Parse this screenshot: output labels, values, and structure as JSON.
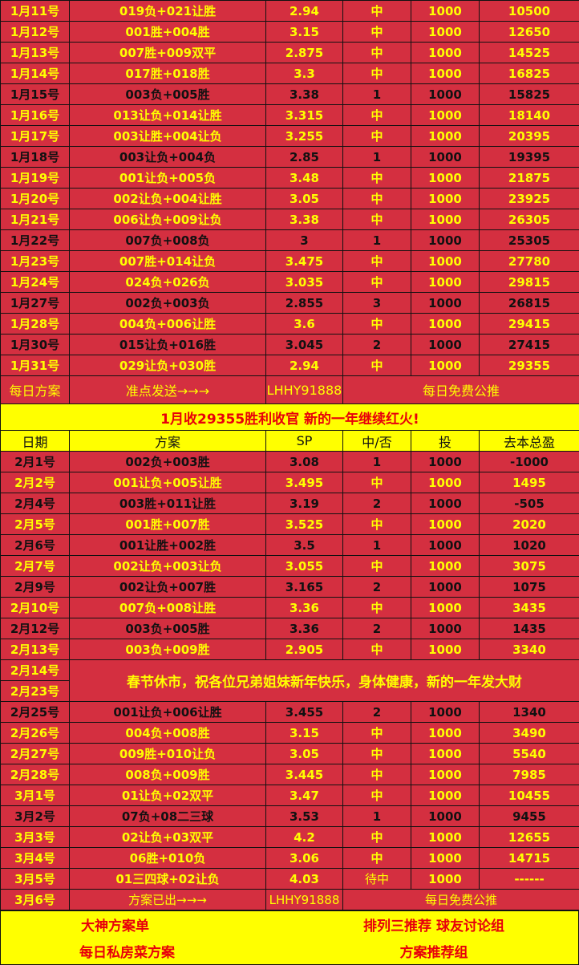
{
  "colors": {
    "background": "#d42f40",
    "win_text": "#ffff00",
    "loss_text": "#111111",
    "banner_bg": "#ffff00",
    "banner_text": "#e8000b"
  },
  "jan_rows": [
    [
      "1月11号",
      "019负+021让胜",
      "2.94",
      "中",
      "1000",
      "10500"
    ],
    [
      "1月12号",
      "001胜+004胜",
      "3.15",
      "中",
      "1000",
      "12650"
    ],
    [
      "1月13号",
      "007胜+009双平",
      "2.875",
      "中",
      "1000",
      "14525"
    ],
    [
      "1月14号",
      "017胜+018胜",
      "3.3",
      "中",
      "1000",
      "16825"
    ],
    [
      "1月15号",
      "003负+005胜",
      "3.38",
      "1",
      "1000",
      "15825"
    ],
    [
      "1月16号",
      "013让负+014让胜",
      "3.315",
      "中",
      "1000",
      "18140"
    ],
    [
      "1月17号",
      "003让胜+004让负",
      "3.255",
      "中",
      "1000",
      "20395"
    ],
    [
      "1月18号",
      "003让负+004负",
      "2.85",
      "1",
      "1000",
      "19395"
    ],
    [
      "1月19号",
      "001让负+005负",
      "3.48",
      "中",
      "1000",
      "21875"
    ],
    [
      "1月20号",
      "002让负+004让胜",
      "3.05",
      "中",
      "1000",
      "23925"
    ],
    [
      "1月21号",
      "006让负+009让负",
      "3.38",
      "中",
      "1000",
      "26305"
    ],
    [
      "1月22号",
      "007负+008负",
      "3",
      "1",
      "1000",
      "25305"
    ],
    [
      "1月23号",
      "007胜+014让负",
      "3.475",
      "中",
      "1000",
      "27780"
    ],
    [
      "1月24号",
      "024负+026负",
      "3.035",
      "中",
      "1000",
      "29815"
    ],
    [
      "1月27号",
      "002负+003负",
      "2.855",
      "3",
      "1000",
      "26815"
    ],
    [
      "1月28号",
      "004负+006让胜",
      "3.6",
      "中",
      "1000",
      "29415"
    ],
    [
      "1月30号",
      "015让负+016胜",
      "3.045",
      "2",
      "1000",
      "27415"
    ],
    [
      "1月31号",
      "029让负+030胜",
      "2.94",
      "中",
      "1000",
      "29355"
    ]
  ],
  "jan_info": {
    "c1": "每日方案",
    "c2": "准点发送→→→",
    "c3": "LHHY91888",
    "c4": "每日免费公推"
  },
  "banner": "1月收29355胜利收官 新的一年继续红火!",
  "header": [
    "日期",
    "方案",
    "SP",
    "中/否",
    "投",
    "去本总盈"
  ],
  "feb_rows_a": [
    [
      "2月1号",
      "002负+003胜",
      "3.08",
      "1",
      "1000",
      "-1000"
    ],
    [
      "2月2号",
      "001让负+005让胜",
      "3.495",
      "中",
      "1000",
      "1495"
    ],
    [
      "2月4号",
      "003胜+011让胜",
      "3.19",
      "2",
      "1000",
      "-505"
    ],
    [
      "2月5号",
      "001胜+007胜",
      "3.525",
      "中",
      "1000",
      "2020"
    ],
    [
      "2月6号",
      "001让胜+002胜",
      "3.5",
      "1",
      "1000",
      "1020"
    ],
    [
      "2月7号",
      "002让负+003让负",
      "3.055",
      "中",
      "1000",
      "3075"
    ],
    [
      "2月9号",
      "002让负+007胜",
      "3.165",
      "2",
      "1000",
      "1075"
    ],
    [
      "2月10号",
      "007负+008让胜",
      "3.36",
      "中",
      "1000",
      "3435"
    ],
    [
      "2月12号",
      "003负+005胜",
      "3.36",
      "2",
      "1000",
      "1435"
    ],
    [
      "2月13号",
      "003负+009胜",
      "2.905",
      "中",
      "1000",
      "3340"
    ]
  ],
  "holiday": {
    "date1": "2月14号",
    "date2": "2月23号",
    "text": "春节休市，祝各位兄弟姐妹新年快乐，身体健康，新的一年发大财"
  },
  "feb_rows_b": [
    [
      "2月25号",
      "001让负+006让胜",
      "3.455",
      "2",
      "1000",
      "1340"
    ],
    [
      "2月26号",
      "004负+008胜",
      "3.15",
      "中",
      "1000",
      "3490"
    ],
    [
      "2月27号",
      "009胜+010让负",
      "3.05",
      "中",
      "1000",
      "5540"
    ],
    [
      "2月28号",
      "008负+009胜",
      "3.445",
      "中",
      "1000",
      "7985"
    ],
    [
      "3月1号",
      "01让负+02双平",
      "3.47",
      "中",
      "1000",
      "10455"
    ],
    [
      "3月2号",
      "07负+08二三球",
      "3.53",
      "1",
      "1000",
      "9455"
    ],
    [
      "3月3号",
      "02让负+03双平",
      "4.2",
      "中",
      "1000",
      "12655"
    ],
    [
      "3月4号",
      "06胜+010负",
      "3.06",
      "中",
      "1000",
      "14715"
    ],
    [
      "3月5号",
      "01三四球+02让负",
      "4.03",
      "待中",
      "1000",
      "------"
    ]
  ],
  "mar_info": {
    "c1": "3月6号",
    "c2": "方案已出→→→",
    "c3": "LHHY91888",
    "c4": "每日免费公推"
  },
  "footer": {
    "a": "大神方案单",
    "b": "排列三推荐 球友讨论组",
    "c": "每日私房菜方案",
    "d": "方案推荐组"
  }
}
